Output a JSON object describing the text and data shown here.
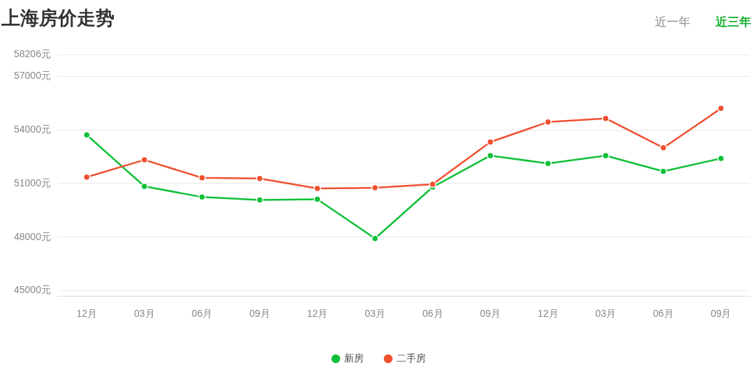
{
  "chart_data": {
    "type": "line",
    "title": "上海房价走势",
    "annotations": [
      "近一年",
      "近三年"
    ],
    "categories": [
      "12月",
      "03月",
      "06月",
      "09月",
      "12月",
      "03月",
      "06月",
      "09月",
      "12月",
      "03月",
      "06月",
      "09月"
    ],
    "series": [
      {
        "name": "新房",
        "color": "#10c038",
        "values": [
          53720,
          50840,
          50240,
          50080,
          50120,
          47920,
          50800,
          52560,
          52120,
          52560,
          51680,
          52400
        ]
      },
      {
        "name": "二手房",
        "color": "#f05030",
        "values": [
          51360,
          52320,
          51320,
          51280,
          50720,
          50760,
          50960,
          53320,
          54440,
          54640,
          53000,
          55200
        ]
      }
    ],
    "ylim": [
      44700,
      58206
    ],
    "yticks": [
      {
        "value": 45000,
        "label": "45000元"
      },
      {
        "value": 48000,
        "label": "48000元"
      },
      {
        "value": 51000,
        "label": "51000元"
      },
      {
        "value": 54000,
        "label": "54000元"
      },
      {
        "value": 57000,
        "label": "57000元"
      },
      {
        "value": 58206,
        "label": "58206元"
      }
    ],
    "grid": "y",
    "legend": "bottom",
    "marker": "circle",
    "line_style": "solid"
  }
}
